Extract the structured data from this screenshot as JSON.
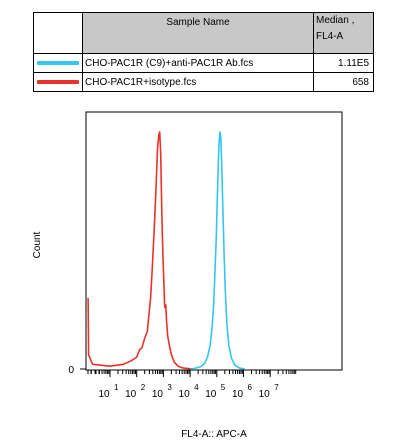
{
  "legend_table": {
    "header_name": "Sample Name",
    "header_median": "Median , FL4-A",
    "rows": [
      {
        "name": "CHO-PAC1R (C9)+anti-PAC1R Ab.fcs",
        "median": "1.11E5",
        "color": "#34c6ee"
      },
      {
        "name": "CHO-PAC1R+isotype.fcs",
        "median": "658",
        "color": "#e8332b"
      }
    ]
  },
  "chart_data": {
    "type": "histogram",
    "xlabel": "FL4-A:: APC-A",
    "ylabel": "Count",
    "x_scale": "log",
    "x_ticks": [
      {
        "base": "10",
        "exp": "1"
      },
      {
        "base": "10",
        "exp": "2"
      },
      {
        "base": "10",
        "exp": "3"
      },
      {
        "base": "10",
        "exp": "4"
      },
      {
        "base": "10",
        "exp": "5"
      },
      {
        "base": "10",
        "exp": "6"
      },
      {
        "base": "10",
        "exp": "7"
      }
    ],
    "y_ticks": [
      "0"
    ],
    "series": [
      {
        "name": "CHO-PAC1R+isotype.fcs",
        "color": "#e8332b",
        "points": [
          [
            0.18,
            0.3
          ],
          [
            0.2,
            0.06
          ],
          [
            0.35,
            0.02
          ],
          [
            1.0,
            0.012
          ],
          [
            1.5,
            0.02
          ],
          [
            1.8,
            0.035
          ],
          [
            2.0,
            0.05
          ],
          [
            2.1,
            0.08
          ],
          [
            2.2,
            0.09
          ],
          [
            2.3,
            0.13
          ],
          [
            2.4,
            0.16
          ],
          [
            2.45,
            0.22
          ],
          [
            2.52,
            0.3
          ],
          [
            2.58,
            0.42
          ],
          [
            2.65,
            0.58
          ],
          [
            2.72,
            0.75
          ],
          [
            2.78,
            0.93
          ],
          [
            2.83,
            0.99
          ],
          [
            2.86,
            1.0
          ],
          [
            2.9,
            0.91
          ],
          [
            2.94,
            0.66
          ],
          [
            2.98,
            0.48
          ],
          [
            3.02,
            0.36
          ],
          [
            3.05,
            0.26
          ],
          [
            3.09,
            0.27
          ],
          [
            3.12,
            0.2
          ],
          [
            3.16,
            0.14
          ],
          [
            3.22,
            0.1
          ],
          [
            3.3,
            0.06
          ],
          [
            3.4,
            0.03
          ],
          [
            3.55,
            0.012
          ],
          [
            3.75,
            0.004
          ],
          [
            4.1,
            0.0
          ]
        ]
      },
      {
        "name": "CHO-PAC1R (C9)+anti-PAC1R Ab.fcs",
        "color": "#34c6ee",
        "points": [
          [
            4.02,
            0.0
          ],
          [
            4.2,
            0.004
          ],
          [
            4.4,
            0.01
          ],
          [
            4.55,
            0.025
          ],
          [
            4.65,
            0.05
          ],
          [
            4.75,
            0.1
          ],
          [
            4.82,
            0.17
          ],
          [
            4.88,
            0.27
          ],
          [
            4.93,
            0.4
          ],
          [
            4.98,
            0.56
          ],
          [
            5.02,
            0.72
          ],
          [
            5.06,
            0.88
          ],
          [
            5.09,
            0.96
          ],
          [
            5.12,
            1.0
          ],
          [
            5.15,
            0.98
          ],
          [
            5.18,
            0.88
          ],
          [
            5.22,
            0.7
          ],
          [
            5.27,
            0.5
          ],
          [
            5.32,
            0.33
          ],
          [
            5.38,
            0.19
          ],
          [
            5.45,
            0.1
          ],
          [
            5.55,
            0.045
          ],
          [
            5.68,
            0.015
          ],
          [
            5.85,
            0.004
          ],
          [
            6.05,
            0.0
          ]
        ]
      }
    ]
  }
}
